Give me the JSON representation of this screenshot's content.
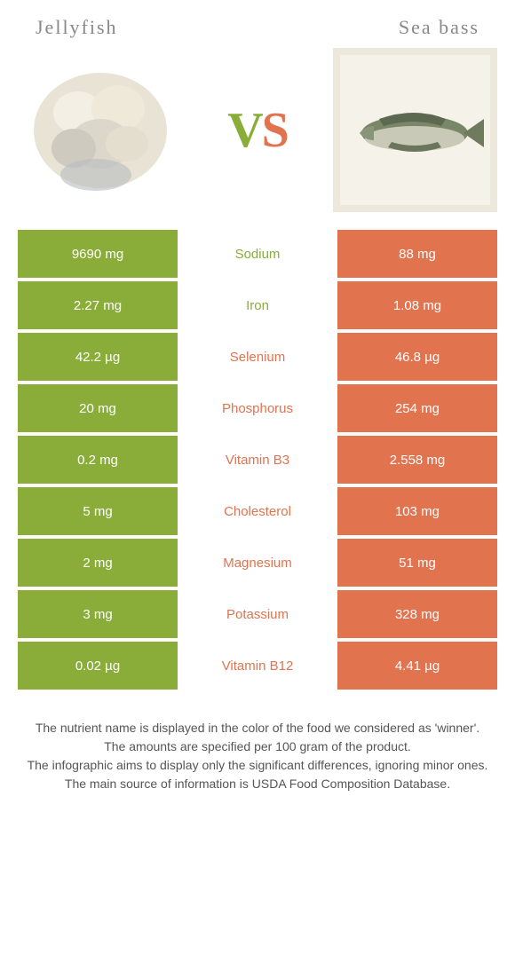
{
  "colors": {
    "left": "#8aad3a",
    "right": "#e1734f",
    "header_text": "#888888",
    "body_text": "#555555",
    "bg": "#ffffff"
  },
  "header": {
    "left_title": "Jellyfish",
    "right_title": "Sea bass",
    "vs_v": "V",
    "vs_s": "S"
  },
  "rows": [
    {
      "left": "9690 mg",
      "label": "Sodium",
      "right": "88 mg",
      "winner": "left"
    },
    {
      "left": "2.27 mg",
      "label": "Iron",
      "right": "1.08 mg",
      "winner": "left"
    },
    {
      "left": "42.2 µg",
      "label": "Selenium",
      "right": "46.8 µg",
      "winner": "right"
    },
    {
      "left": "20 mg",
      "label": "Phosphorus",
      "right": "254 mg",
      "winner": "right"
    },
    {
      "left": "0.2 mg",
      "label": "Vitamin B3",
      "right": "2.558 mg",
      "winner": "right"
    },
    {
      "left": "5 mg",
      "label": "Cholesterol",
      "right": "103 mg",
      "winner": "right"
    },
    {
      "left": "2 mg",
      "label": "Magnesium",
      "right": "51 mg",
      "winner": "right"
    },
    {
      "left": "3 mg",
      "label": "Potassium",
      "right": "328 mg",
      "winner": "right"
    },
    {
      "left": "0.02 µg",
      "label": "Vitamin B12",
      "right": "4.41 µg",
      "winner": "right"
    }
  ],
  "footnotes": [
    "The nutrient name is displayed in the color of the food we considered as 'winner'.",
    "The amounts are specified per 100 gram of the product.",
    "The infographic aims to display only the significant differences, ignoring minor ones.",
    "The main source of information is USDA Food Composition Database."
  ]
}
